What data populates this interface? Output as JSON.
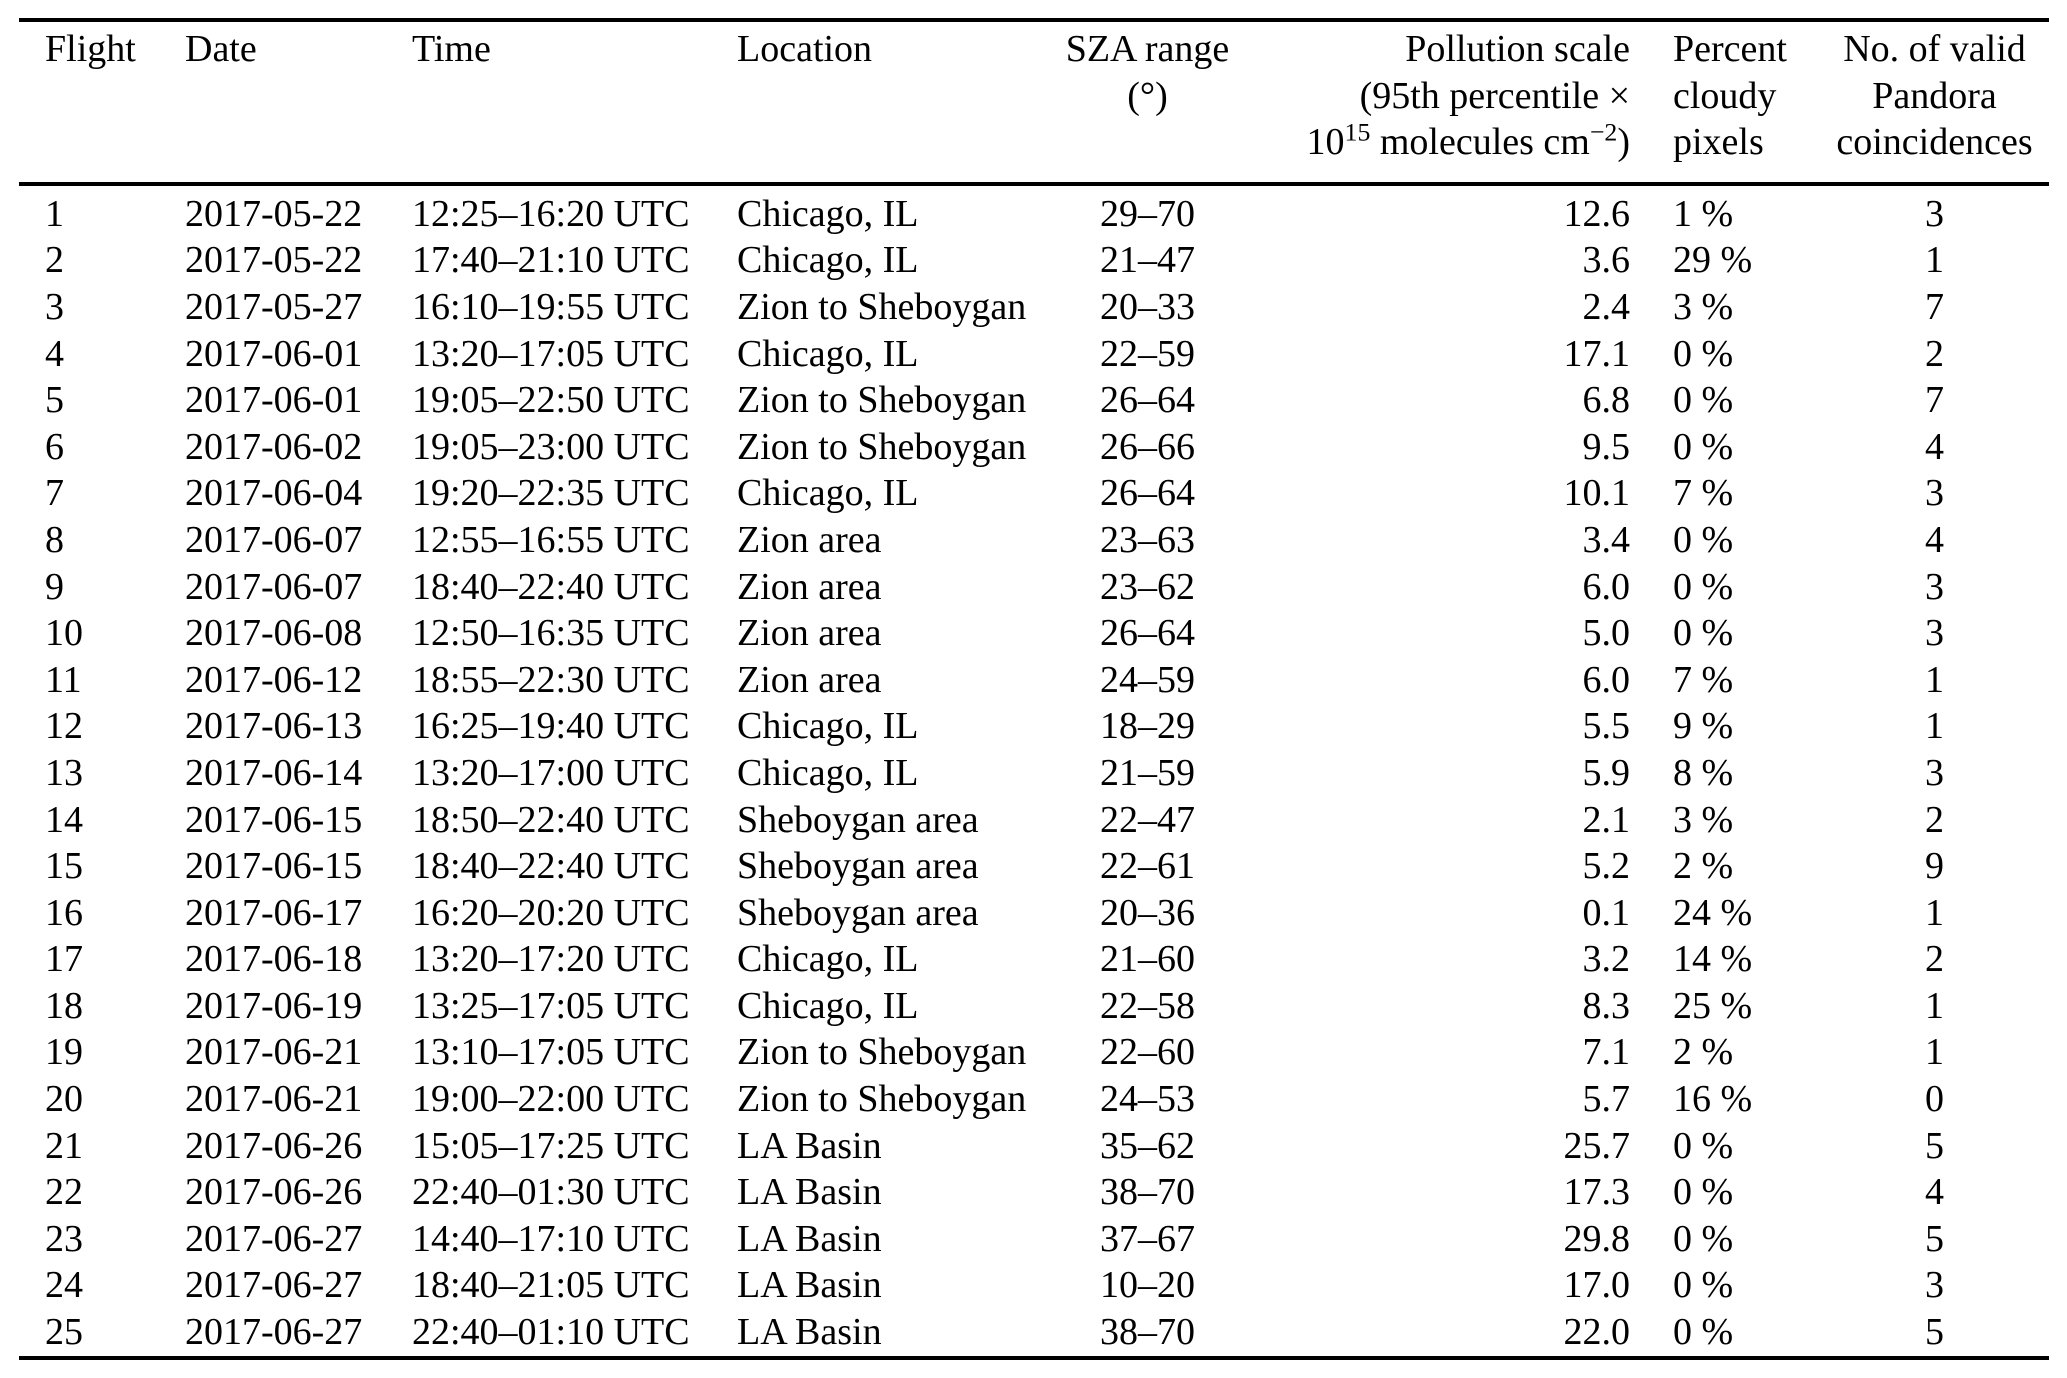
{
  "page": {
    "background_color": "#ffffff",
    "text_color": "#000000",
    "rule_color": "#000000"
  },
  "table": {
    "columns": [
      {
        "key": "flight",
        "header_lines": [
          [
            {
              "t": "Flight"
            }
          ]
        ]
      },
      {
        "key": "date",
        "header_lines": [
          [
            {
              "t": "Date"
            }
          ]
        ]
      },
      {
        "key": "time",
        "header_lines": [
          [
            {
              "t": "Time"
            }
          ]
        ]
      },
      {
        "key": "location",
        "header_lines": [
          [
            {
              "t": "Location"
            }
          ]
        ]
      },
      {
        "key": "sza",
        "header_lines": [
          [
            {
              "t": "SZA range"
            }
          ],
          [
            {
              "t": "(°)"
            }
          ]
        ]
      },
      {
        "key": "pollution",
        "header_lines": [
          [
            {
              "t": "Pollution scale"
            }
          ],
          [
            {
              "t": "(95th percentile ×"
            }
          ],
          [
            {
              "t": "10"
            },
            {
              "t": "15",
              "sup": true
            },
            {
              "t": " molecules cm"
            },
            {
              "t": "−2",
              "sup": true
            },
            {
              "t": ")"
            }
          ]
        ]
      },
      {
        "key": "cloudy",
        "header_lines": [
          [
            {
              "t": "Percent"
            }
          ],
          [
            {
              "t": "cloudy"
            }
          ],
          [
            {
              "t": "pixels"
            }
          ]
        ]
      },
      {
        "key": "coincidences",
        "header_lines": [
          [
            {
              "t": "No. of valid"
            }
          ],
          [
            {
              "t": "Pandora"
            }
          ],
          [
            {
              "t": "coincidences"
            }
          ]
        ]
      }
    ],
    "rows": [
      [
        "1",
        "2017-05-22",
        "12:25–16:20 UTC",
        "Chicago, IL",
        "29–70",
        "12.6",
        "1 %",
        "3"
      ],
      [
        "2",
        "2017-05-22",
        "17:40–21:10 UTC",
        "Chicago, IL",
        "21–47",
        "3.6",
        "29 %",
        "1"
      ],
      [
        "3",
        "2017-05-27",
        "16:10–19:55 UTC",
        "Zion to Sheboygan",
        "20–33",
        "2.4",
        "3 %",
        "7"
      ],
      [
        "4",
        "2017-06-01",
        "13:20–17:05 UTC",
        "Chicago, IL",
        "22–59",
        "17.1",
        "0 %",
        "2"
      ],
      [
        "5",
        "2017-06-01",
        "19:05–22:50 UTC",
        "Zion to Sheboygan",
        "26–64",
        "6.8",
        "0 %",
        "7"
      ],
      [
        "6",
        "2017-06-02",
        "19:05–23:00 UTC",
        "Zion to Sheboygan",
        "26–66",
        "9.5",
        "0 %",
        "4"
      ],
      [
        "7",
        "2017-06-04",
        "19:20–22:35 UTC",
        "Chicago, IL",
        "26–64",
        "10.1",
        "7 %",
        "3"
      ],
      [
        "8",
        "2017-06-07",
        "12:55–16:55 UTC",
        "Zion area",
        "23–63",
        "3.4",
        "0 %",
        "4"
      ],
      [
        "9",
        "2017-06-07",
        "18:40–22:40 UTC",
        "Zion area",
        "23–62",
        "6.0",
        "0 %",
        "3"
      ],
      [
        "10",
        "2017-06-08",
        "12:50–16:35 UTC",
        "Zion area",
        "26–64",
        "5.0",
        "0 %",
        "3"
      ],
      [
        "11",
        "2017-06-12",
        "18:55–22:30 UTC",
        "Zion area",
        "24–59",
        "6.0",
        "7 %",
        "1"
      ],
      [
        "12",
        "2017-06-13",
        "16:25–19:40 UTC",
        "Chicago, IL",
        "18–29",
        "5.5",
        "9 %",
        "1"
      ],
      [
        "13",
        "2017-06-14",
        "13:20–17:00 UTC",
        "Chicago, IL",
        "21–59",
        "5.9",
        "8 %",
        "3"
      ],
      [
        "14",
        "2017-06-15",
        "18:50–22:40 UTC",
        "Sheboygan area",
        "22–47",
        "2.1",
        "3 %",
        "2"
      ],
      [
        "15",
        "2017-06-15",
        "18:40–22:40 UTC",
        "Sheboygan area",
        "22–61",
        "5.2",
        "2 %",
        "9"
      ],
      [
        "16",
        "2017-06-17",
        "16:20–20:20 UTC",
        "Sheboygan area",
        "20–36",
        "0.1",
        "24 %",
        "1"
      ],
      [
        "17",
        "2017-06-18",
        "13:20–17:20 UTC",
        "Chicago, IL",
        "21–60",
        "3.2",
        "14 %",
        "2"
      ],
      [
        "18",
        "2017-06-19",
        "13:25–17:05 UTC",
        "Chicago, IL",
        "22–58",
        "8.3",
        "25 %",
        "1"
      ],
      [
        "19",
        "2017-06-21",
        "13:10–17:05 UTC",
        "Zion to Sheboygan",
        "22–60",
        "7.1",
        "2 %",
        "1"
      ],
      [
        "20",
        "2017-06-21",
        "19:00–22:00 UTC",
        "Zion to Sheboygan",
        "24–53",
        "5.7",
        "16 %",
        "0"
      ],
      [
        "21",
        "2017-06-26",
        "15:05–17:25 UTC",
        "LA Basin",
        "35–62",
        "25.7",
        "0 %",
        "5"
      ],
      [
        "22",
        "2017-06-26",
        "22:40–01:30 UTC",
        "LA Basin",
        "38–70",
        "17.3",
        "0 %",
        "4"
      ],
      [
        "23",
        "2017-06-27",
        "14:40–17:10 UTC",
        "LA Basin",
        "37–67",
        "29.8",
        "0 %",
        "5"
      ],
      [
        "24",
        "2017-06-27",
        "18:40–21:05 UTC",
        "LA Basin",
        "10–20",
        "17.0",
        "0 %",
        "3"
      ],
      [
        "25",
        "2017-06-27",
        "22:40–01:10 UTC",
        "LA Basin",
        "38–70",
        "22.0",
        "0 %",
        "5"
      ]
    ]
  }
}
